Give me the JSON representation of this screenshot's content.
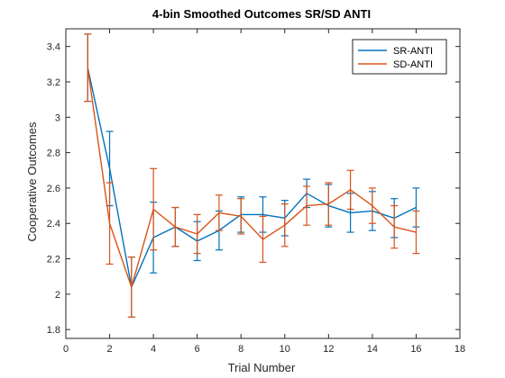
{
  "chart_data": {
    "type": "line",
    "title": "4-bin Smoothed Outcomes SR/SD ANTI",
    "xlabel": "Trial Number",
    "ylabel": "Cooperative Outcomes",
    "xlim": [
      0,
      18
    ],
    "ylim": [
      1.75,
      3.5
    ],
    "xticks": [
      0,
      2,
      4,
      6,
      8,
      10,
      12,
      14,
      16,
      18
    ],
    "yticks": [
      1.8,
      2,
      2.2,
      2.4,
      2.6,
      2.8,
      3,
      3.2,
      3.4
    ],
    "grid": false,
    "legend_position": "top-right",
    "x": [
      1,
      2,
      3,
      4,
      5,
      6,
      7,
      8,
      9,
      10,
      11,
      12,
      13,
      14,
      15,
      16
    ],
    "series": [
      {
        "name": "SR-ANTI",
        "color": "#0072BD",
        "values": [
          3.28,
          2.71,
          2.04,
          2.32,
          2.38,
          2.3,
          2.36,
          2.45,
          2.45,
          2.43,
          2.57,
          2.5,
          2.46,
          2.47,
          2.43,
          2.49
        ],
        "err": [
          0.19,
          0.21,
          0.17,
          0.2,
          0.11,
          0.11,
          0.11,
          0.1,
          0.1,
          0.1,
          0.08,
          0.12,
          0.11,
          0.11,
          0.11,
          0.11
        ]
      },
      {
        "name": "SD-ANTI",
        "color": "#D95319",
        "values": [
          3.28,
          2.4,
          2.04,
          2.48,
          2.38,
          2.34,
          2.46,
          2.44,
          2.31,
          2.39,
          2.5,
          2.51,
          2.59,
          2.5,
          2.38,
          2.35
        ],
        "err": [
          0.19,
          0.23,
          0.17,
          0.23,
          0.11,
          0.11,
          0.1,
          0.1,
          0.13,
          0.12,
          0.11,
          0.12,
          0.11,
          0.1,
          0.12,
          0.12
        ]
      }
    ]
  }
}
